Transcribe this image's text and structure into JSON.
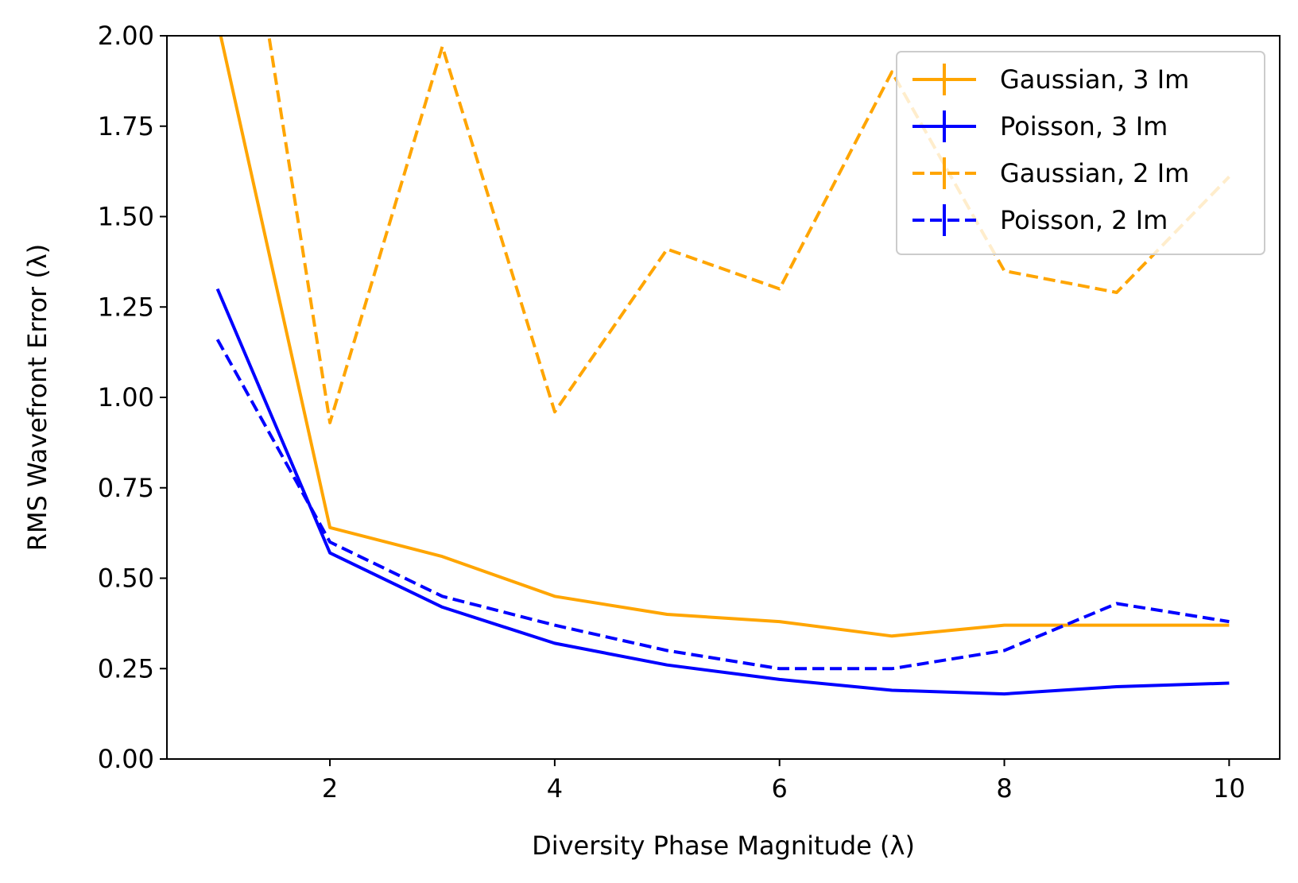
{
  "chart_data": {
    "type": "line",
    "xlabel": "Diversity Phase Magnitude (λ)",
    "ylabel": "RMS Wavefront Error (λ)",
    "xlim": [
      0.55,
      10.45
    ],
    "ylim": [
      0,
      2
    ],
    "x_ticks": [
      2,
      4,
      6,
      8,
      10
    ],
    "y_ticks": [
      0,
      0.25,
      0.5,
      0.75,
      1.0,
      1.25,
      1.5,
      1.75,
      2.0
    ],
    "x_tick_labels": [
      "2",
      "4",
      "6",
      "8",
      "10"
    ],
    "y_tick_labels": [
      "0.00",
      "0.25",
      "0.50",
      "0.75",
      "1.00",
      "1.25",
      "1.50",
      "1.75",
      "2.00"
    ],
    "grid": false,
    "legend_position": "top-right",
    "x": [
      1,
      2,
      3,
      4,
      5,
      6,
      7,
      8,
      9,
      10
    ],
    "series": [
      {
        "name": "Gaussian, 3 Im",
        "color": "#ffa500",
        "dash": "solid",
        "values": [
          2.04,
          0.64,
          0.56,
          0.45,
          0.4,
          0.38,
          0.34,
          0.37,
          0.37,
          0.37
        ]
      },
      {
        "name": "Poisson, 3 Im",
        "color": "#0000ff",
        "dash": "solid",
        "values": [
          1.3,
          0.57,
          0.42,
          0.32,
          0.26,
          0.22,
          0.19,
          0.18,
          0.2,
          0.21
        ]
      },
      {
        "name": "Gaussian, 2 Im",
        "color": "#ffa500",
        "dash": "dashed",
        "values": [
          2.9,
          0.93,
          1.97,
          0.96,
          1.41,
          1.3,
          1.9,
          1.35,
          1.29,
          1.61
        ]
      },
      {
        "name": "Poisson, 2 Im",
        "color": "#0000ff",
        "dash": "dashed",
        "values": [
          1.16,
          0.6,
          0.45,
          0.37,
          0.3,
          0.25,
          0.25,
          0.3,
          0.43,
          0.38
        ]
      }
    ]
  }
}
